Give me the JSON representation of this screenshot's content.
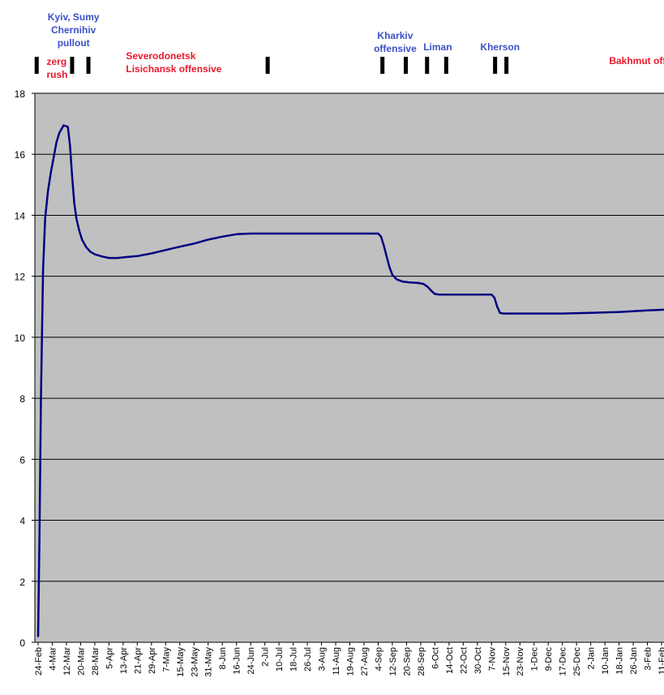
{
  "chart_data": {
    "type": "line",
    "title": "",
    "xlabel": "",
    "ylabel": "",
    "ylim": [
      0,
      18
    ],
    "yticks": [
      0,
      2,
      4,
      6,
      8,
      10,
      12,
      14,
      16,
      18
    ],
    "grid": true,
    "legend": "none",
    "plot_background": "#c0c0c0",
    "line_color": "#000080",
    "categories": [
      "24-Feb",
      "4-Mar",
      "12-Mar",
      "20-Mar",
      "28-Mar",
      "5-Apr",
      "13-Apr",
      "21-Apr",
      "29-Apr",
      "7-May",
      "15-May",
      "23-May",
      "31-May",
      "8-Jun",
      "16-Jun",
      "24-Jun",
      "2-Jul",
      "10-Jul",
      "18-Jul",
      "26-Jul",
      "3-Aug",
      "11-Aug",
      "19-Aug",
      "27-Aug",
      "4-Sep",
      "12-Sep",
      "20-Sep",
      "28-Sep",
      "6-Oct",
      "14-Oct",
      "22-Oct",
      "30-Oct",
      "7-Nov",
      "15-Nov",
      "23-Nov",
      "1-Dec",
      "9-Dec",
      "17-Dec",
      "25-Dec",
      "2-Jan",
      "10-Jan",
      "18-Jan",
      "26-Jan",
      "3-Feb",
      "11-Feb"
    ],
    "series": [
      {
        "name": "",
        "x": [
          0,
          0.1,
          0.2,
          0.35,
          0.5,
          0.7,
          0.9,
          1.1,
          1.3,
          1.5,
          1.8,
          2.1,
          2.25,
          2.4,
          2.55,
          2.7,
          2.9,
          3.1,
          3.4,
          3.7,
          4.0,
          4.5,
          5.0,
          5.6,
          6.2,
          7.0,
          8.0,
          9.0,
          10.0,
          11.0,
          12.0,
          13.0,
          14.0,
          15.0,
          16.0,
          16.5,
          17.0,
          18.0,
          20.0,
          22.0,
          23.5,
          24.0,
          24.2,
          24.4,
          24.6,
          24.8,
          25.0,
          25.3,
          25.7,
          26.2,
          26.8,
          27.2,
          27.5,
          27.8,
          28.0,
          28.3,
          28.7,
          29.5,
          30.5,
          31.5,
          32.0,
          32.2,
          32.4,
          32.6,
          32.8,
          33.0,
          33.5,
          35.0,
          37.0,
          39.0,
          41.0,
          43.0,
          44.8
        ],
        "values": [
          0.2,
          3.5,
          8.0,
          12.2,
          13.9,
          14.8,
          15.4,
          15.9,
          16.4,
          16.7,
          16.95,
          16.9,
          16.3,
          15.3,
          14.4,
          13.9,
          13.5,
          13.2,
          12.95,
          12.8,
          12.72,
          12.65,
          12.6,
          12.6,
          12.63,
          12.66,
          12.75,
          12.86,
          12.97,
          13.07,
          13.2,
          13.3,
          13.38,
          13.4,
          13.4,
          13.4,
          13.4,
          13.4,
          13.4,
          13.4,
          13.4,
          13.4,
          13.3,
          13.0,
          12.65,
          12.3,
          12.05,
          11.9,
          11.83,
          11.8,
          11.78,
          11.75,
          11.65,
          11.5,
          11.42,
          11.4,
          11.4,
          11.4,
          11.4,
          11.4,
          11.4,
          11.3,
          11.0,
          10.8,
          10.78,
          10.78,
          10.78,
          10.78,
          10.78,
          10.8,
          10.83,
          10.88,
          10.92
        ]
      }
    ],
    "annotations": [
      {
        "id": "zerg",
        "lines": [
          "zerg",
          "rush"
        ],
        "color": "#e8192c",
        "x": 0.6
      },
      {
        "id": "kyiv",
        "lines": [
          "Kyiv, Sumy",
          "Chernihiv",
          "pullout"
        ],
        "color": "#3b50c8",
        "x": 2.5
      },
      {
        "id": "severodonetsk",
        "lines": [
          "Severodonetsk",
          "Lisichansk offensive"
        ],
        "color": "#e8192c",
        "x": 6.2
      },
      {
        "id": "kharkiv",
        "lines": [
          "Kharkiv",
          "offensive"
        ],
        "color": "#3b50c8",
        "x": 25.2
      },
      {
        "id": "liman",
        "lines": [
          "Liman"
        ],
        "color": "#3b50c8",
        "x": 28.2
      },
      {
        "id": "kherson",
        "lines": [
          "Kherson"
        ],
        "color": "#3b50c8",
        "x": 32.6
      },
      {
        "id": "bakhmut",
        "lines": [
          "Bakhmut offensive"
        ],
        "color": "#e8192c",
        "x": 40.3
      }
    ],
    "event_markers_x": [
      -0.1,
      2.4,
      3.55,
      16.2,
      24.3,
      25.95,
      27.45,
      28.8,
      32.25,
      33.05
    ]
  }
}
